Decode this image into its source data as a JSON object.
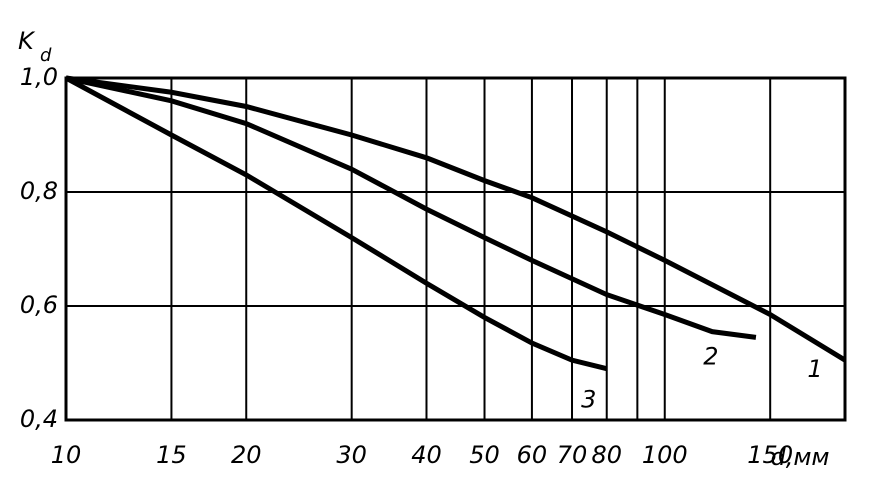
{
  "chart_data": {
    "type": "line",
    "ylabel": "K",
    "ylabel_sub": "d",
    "xlabel": "d,мм",
    "xscale": "log",
    "grid": true,
    "color": "#000000",
    "xlim": [
      10,
      200
    ],
    "ylim": [
      0.4,
      1.0
    ],
    "xticks": [
      10,
      15,
      20,
      30,
      40,
      50,
      60,
      70,
      80,
      {
        "value": 90,
        "label": null
      },
      100,
      150
    ],
    "yticks": [
      {
        "value": 0.4,
        "label": "0,4"
      },
      {
        "value": 0.6,
        "label": "0,6"
      },
      {
        "value": 0.8,
        "label": "0,8"
      },
      {
        "value": 1.0,
        "label": "1,0"
      }
    ],
    "series": [
      {
        "name": "1",
        "x": [
          10,
          15,
          20,
          30,
          40,
          50,
          60,
          80,
          100,
          150,
          200
        ],
        "values": [
          1.0,
          0.975,
          0.95,
          0.9,
          0.86,
          0.82,
          0.79,
          0.73,
          0.68,
          0.585,
          0.505
        ]
      },
      {
        "name": "2",
        "x": [
          10,
          15,
          20,
          30,
          40,
          50,
          60,
          80,
          100,
          120,
          142
        ],
        "values": [
          1.0,
          0.96,
          0.92,
          0.84,
          0.77,
          0.72,
          0.68,
          0.62,
          0.585,
          0.555,
          0.545
        ]
      },
      {
        "name": "3",
        "x": [
          10,
          15,
          20,
          30,
          40,
          50,
          60,
          70,
          80
        ],
        "values": [
          1.0,
          0.9,
          0.83,
          0.72,
          0.64,
          0.58,
          0.535,
          0.505,
          0.49
        ]
      }
    ]
  }
}
